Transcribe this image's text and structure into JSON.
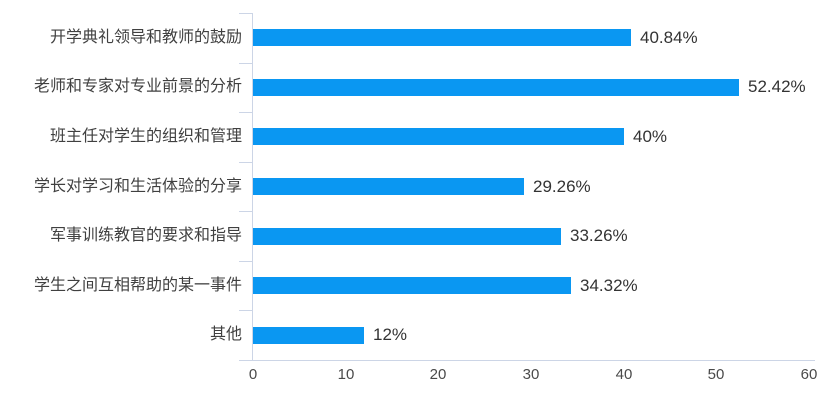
{
  "chart_data": {
    "type": "bar",
    "orientation": "horizontal",
    "title": "",
    "categories": [
      "开学典礼领导和教师的鼓励",
      "老师和专家对专业前景的分析",
      "班主任对学生的组织和管理",
      "学长对学习和生活体验的分享",
      "军事训练教官的要求和指导",
      "学生之间互相帮助的某一事件",
      "其他"
    ],
    "values": [
      40.84,
      52.42,
      40,
      29.26,
      33.26,
      34.32,
      12
    ],
    "value_labels": [
      "40.84%",
      "52.42%",
      "40%",
      "29.26%",
      "33.26%",
      "34.32%",
      "12%"
    ],
    "x_ticks": [
      "0",
      "10",
      "20",
      "30",
      "40",
      "50",
      "60"
    ],
    "x_tick_values": [
      0,
      10,
      20,
      30,
      40,
      50,
      60
    ],
    "xlim": [
      0,
      60
    ],
    "xlabel": "",
    "ylabel": "",
    "grid": false,
    "legend_position": "none",
    "colors": {
      "bar": "#0a97f2",
      "axis": "#ccd5e6",
      "category_label": "#404040",
      "value_label": "#333333",
      "axis_tick_label": "#4a4a4a",
      "background": "#ffffff"
    }
  }
}
